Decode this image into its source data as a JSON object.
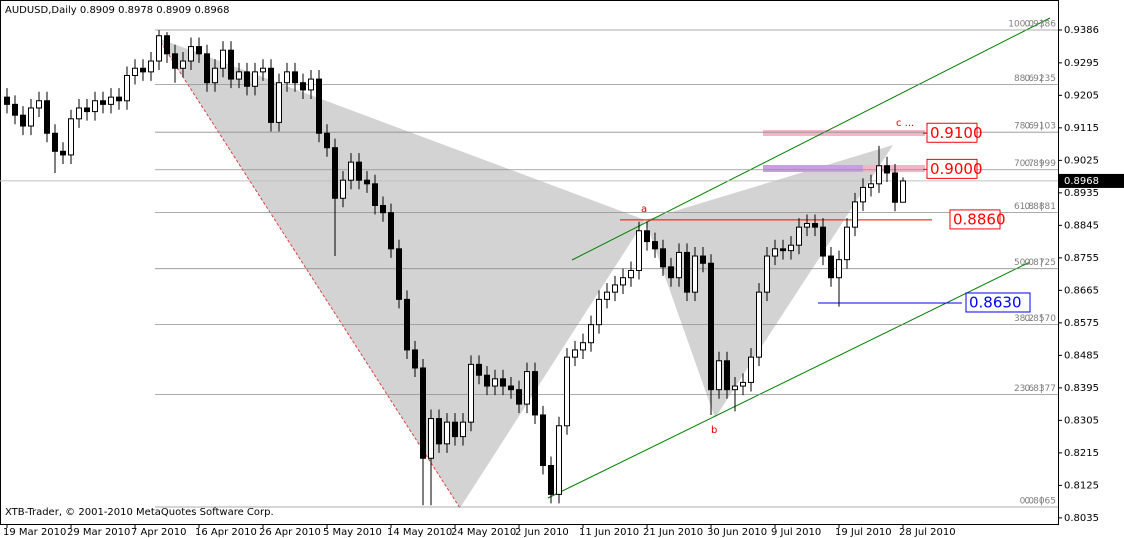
{
  "chart_data": {
    "type": "candlestick",
    "title": "AUDUSD,Daily",
    "watermark": "XTB-Trader, © 2001-2010 MetaQuotes Software Corp.",
    "categories": [
      "19 Mar 2010",
      null,
      null,
      null,
      null,
      null,
      null,
      null,
      "29 Mar 2010",
      null,
      null,
      null,
      null,
      null,
      null,
      null,
      "7 Apr 2010",
      null,
      null,
      null,
      null,
      null,
      null,
      null,
      "16 Apr 2010",
      null,
      null,
      null,
      null,
      null,
      null,
      null,
      "26 Apr 2010",
      null,
      null,
      null,
      null,
      null,
      null,
      null,
      "5 May 2010",
      null,
      null,
      null,
      null,
      null,
      null,
      null,
      "14 May 2010",
      null,
      null,
      null,
      null,
      null,
      null,
      null,
      "24 May 2010",
      null,
      null,
      null,
      null,
      null,
      null,
      null,
      "2 Jun 2010",
      null,
      null,
      null,
      null,
      null,
      null,
      null,
      "11 Jun 2010",
      null,
      null,
      null,
      null,
      null,
      null,
      null,
      "21 Jun 2010",
      null,
      null,
      null,
      null,
      null,
      null,
      null,
      "30 Jun 2010",
      null,
      null,
      null,
      null,
      null,
      null,
      null,
      "9 Jul 2010",
      null,
      null,
      null,
      null,
      null,
      null,
      null,
      "19 Jul 2010",
      null,
      null,
      null,
      null,
      null,
      null,
      null,
      "28 Jul 2010"
    ],
    "series": [
      {
        "name": "AUDUSD",
        "open": [
          0.92,
          0.918,
          0.915,
          0.912,
          0.917,
          0.919,
          0.91,
          0.905,
          0.904,
          0.914,
          0.917,
          0.916,
          0.919,
          0.918,
          0.92,
          0.919,
          0.926,
          0.928,
          0.927,
          0.93,
          0.937,
          0.932,
          0.928,
          0.93,
          0.934,
          0.932,
          0.924,
          0.928,
          0.933,
          0.925,
          0.927,
          0.923,
          0.927,
          0.928,
          0.913,
          0.924,
          0.927,
          0.924,
          0.922,
          0.925,
          0.91,
          0.906,
          0.892,
          0.897,
          0.902,
          0.897,
          0.896,
          0.89,
          0.888,
          0.878,
          0.864,
          0.85,
          0.845,
          0.82,
          0.831,
          0.824,
          0.83,
          0.826,
          0.83,
          0.846,
          0.843,
          0.84,
          0.842,
          0.84,
          0.839,
          0.835,
          0.844,
          0.832,
          0.818,
          0.81,
          0.829,
          0.848,
          0.85,
          0.852,
          0.857,
          0.864,
          0.866,
          0.868,
          0.87,
          0.872,
          0.883,
          0.88,
          0.878,
          0.873,
          0.87,
          0.877,
          0.866,
          0.876,
          0.874,
          0.839,
          0.847,
          0.839,
          0.84,
          0.841,
          0.848,
          0.866,
          0.876,
          0.878,
          0.8775,
          0.879,
          0.884,
          0.885,
          0.884,
          0.876,
          0.87,
          0.875,
          0.884,
          0.891,
          0.895,
          0.896,
          0.901,
          0.899,
          0.8909
        ],
        "high": [
          0.9225,
          0.9205,
          0.9175,
          0.9195,
          0.9215,
          0.9215,
          0.9125,
          0.9075,
          0.9165,
          0.9195,
          0.9195,
          0.9215,
          0.9215,
          0.9225,
          0.9225,
          0.9285,
          0.9305,
          0.9305,
          0.9325,
          0.9386,
          0.938,
          0.9345,
          0.9325,
          0.9365,
          0.9365,
          0.9345,
          0.9305,
          0.9355,
          0.9355,
          0.9295,
          0.9295,
          0.9295,
          0.9305,
          0.9305,
          0.9265,
          0.9295,
          0.9295,
          0.9265,
          0.9275,
          0.9275,
          0.9125,
          0.9085,
          0.8995,
          0.9045,
          0.9045,
          0.8995,
          0.8985,
          0.8925,
          0.8905,
          0.8805,
          0.8665,
          0.8525,
          0.8475,
          0.8335,
          0.8335,
          0.8325,
          0.8325,
          0.8325,
          0.8485,
          0.8485,
          0.8455,
          0.8445,
          0.8445,
          0.8425,
          0.8415,
          0.8465,
          0.8465,
          0.8345,
          0.8205,
          0.8315,
          0.8505,
          0.8525,
          0.8545,
          0.8595,
          0.8665,
          0.8685,
          0.8705,
          0.8725,
          0.8745,
          0.8855,
          0.8855,
          0.8825,
          0.8805,
          0.8755,
          0.8795,
          0.8795,
          0.8785,
          0.8785,
          0.8765,
          0.8495,
          0.8495,
          0.8425,
          0.8435,
          0.8505,
          0.8685,
          0.8785,
          0.8805,
          0.8805,
          0.8815,
          0.8865,
          0.8875,
          0.8875,
          0.8865,
          0.8785,
          0.8775,
          0.8865,
          0.8935,
          0.8975,
          0.8985,
          0.9065,
          0.9035,
          0.9015,
          0.8978
        ],
        "low": [
          0.9155,
          0.9125,
          0.9095,
          0.9095,
          0.9145,
          0.9075,
          0.899,
          0.9015,
          0.9015,
          0.9115,
          0.9135,
          0.9135,
          0.9155,
          0.9155,
          0.9165,
          0.9165,
          0.9235,
          0.9245,
          0.9245,
          0.9275,
          0.9295,
          0.924,
          0.9255,
          0.9275,
          0.9295,
          0.9215,
          0.9215,
          0.9255,
          0.9225,
          0.9225,
          0.9205,
          0.9205,
          0.9245,
          0.9105,
          0.9105,
          0.9215,
          0.9215,
          0.9195,
          0.9195,
          0.9075,
          0.9035,
          0.876,
          0.8895,
          0.8945,
          0.8945,
          0.8935,
          0.8875,
          0.8855,
          0.8755,
          0.8615,
          0.8475,
          0.8425,
          0.807,
          0.807,
          0.8215,
          0.8215,
          0.8235,
          0.8235,
          0.8275,
          0.8405,
          0.8375,
          0.8375,
          0.8375,
          0.8365,
          0.8325,
          0.8325,
          0.8295,
          0.8155,
          0.8075,
          0.8075,
          0.8265,
          0.8455,
          0.8475,
          0.8495,
          0.8545,
          0.8615,
          0.8635,
          0.8655,
          0.8675,
          0.8695,
          0.8775,
          0.8755,
          0.8705,
          0.8675,
          0.8675,
          0.8635,
          0.8635,
          0.8715,
          0.832,
          0.8365,
          0.8365,
          0.833,
          0.8375,
          0.8385,
          0.8455,
          0.8635,
          0.8735,
          0.875,
          0.875,
          0.8765,
          0.8815,
          0.8815,
          0.8735,
          0.8675,
          0.862,
          0.8725,
          0.8815,
          0.8885,
          0.8925,
          0.8935,
          0.8965,
          0.8884,
          0.8909
        ],
        "close": [
          0.918,
          0.915,
          0.912,
          0.917,
          0.919,
          0.91,
          0.905,
          0.904,
          0.914,
          0.917,
          0.916,
          0.919,
          0.918,
          0.92,
          0.919,
          0.926,
          0.928,
          0.927,
          0.93,
          0.937,
          0.932,
          0.928,
          0.93,
          0.934,
          0.932,
          0.924,
          0.928,
          0.933,
          0.925,
          0.927,
          0.923,
          0.927,
          0.928,
          0.913,
          0.924,
          0.927,
          0.924,
          0.922,
          0.925,
          0.91,
          0.906,
          0.892,
          0.897,
          0.902,
          0.897,
          0.896,
          0.89,
          0.888,
          0.878,
          0.864,
          0.85,
          0.845,
          0.82,
          0.831,
          0.824,
          0.83,
          0.826,
          0.83,
          0.846,
          0.843,
          0.84,
          0.842,
          0.84,
          0.839,
          0.835,
          0.844,
          0.832,
          0.818,
          0.81,
          0.829,
          0.848,
          0.85,
          0.852,
          0.857,
          0.864,
          0.866,
          0.868,
          0.87,
          0.872,
          0.883,
          0.88,
          0.878,
          0.873,
          0.87,
          0.877,
          0.866,
          0.876,
          0.874,
          0.839,
          0.847,
          0.839,
          0.84,
          0.841,
          0.848,
          0.866,
          0.876,
          0.878,
          0.8775,
          0.879,
          0.884,
          0.885,
          0.884,
          0.876,
          0.87,
          0.875,
          0.884,
          0.891,
          0.895,
          0.896,
          0.901,
          0.899,
          0.8909,
          0.8968
        ],
        "up_color": "#ffffff",
        "down_color": "#000000",
        "edge_color": "#000000"
      }
    ],
    "ylim": [
      0.8018,
      0.9469
    ],
    "yticks": [
      0.9386,
      0.9295,
      0.9205,
      0.9115,
      0.9025,
      0.8935,
      0.8845,
      0.8755,
      0.8665,
      {
        "value": 0.8575,
        "label": "0.8575"
      },
      0.8485,
      0.8395,
      0.8305,
      0.8215,
      0.8125,
      0.8035
    ],
    "current_price": 0.8968,
    "fib_levels": [
      {
        "level": "100.0",
        "price": 0.9386
      },
      {
        "level": "88.6",
        "price": 0.9235
      },
      {
        "level": "78.6",
        "price": 0.9103
      },
      {
        "level": "70.7",
        "price": 0.8999
      },
      {
        "level": "61.8",
        "price": 0.8881
      },
      {
        "level": "50.0",
        "price": 0.8725
      },
      {
        "level": "38.2",
        "price": {
          "value": 0.857,
          "label": "0.8570"
        }
      },
      {
        "level": "23.6",
        "price": 0.8377
      },
      {
        "level": "0.0",
        "price": 0.8065
      }
    ],
    "price_levels": [
      {
        "value": 0.91,
        "label": "0.9100",
        "color": "#ff0000"
      },
      {
        "value": 0.9,
        "label": "0.9000",
        "color": "#ff0000"
      },
      {
        "value": 0.886,
        "label": "0.8860",
        "color": "#ff0000"
      },
      {
        "value": 0.863,
        "label": "0.8630",
        "color": "#0000ff"
      }
    ],
    "annotations": [
      "a",
      "b",
      "c ..."
    ]
  }
}
